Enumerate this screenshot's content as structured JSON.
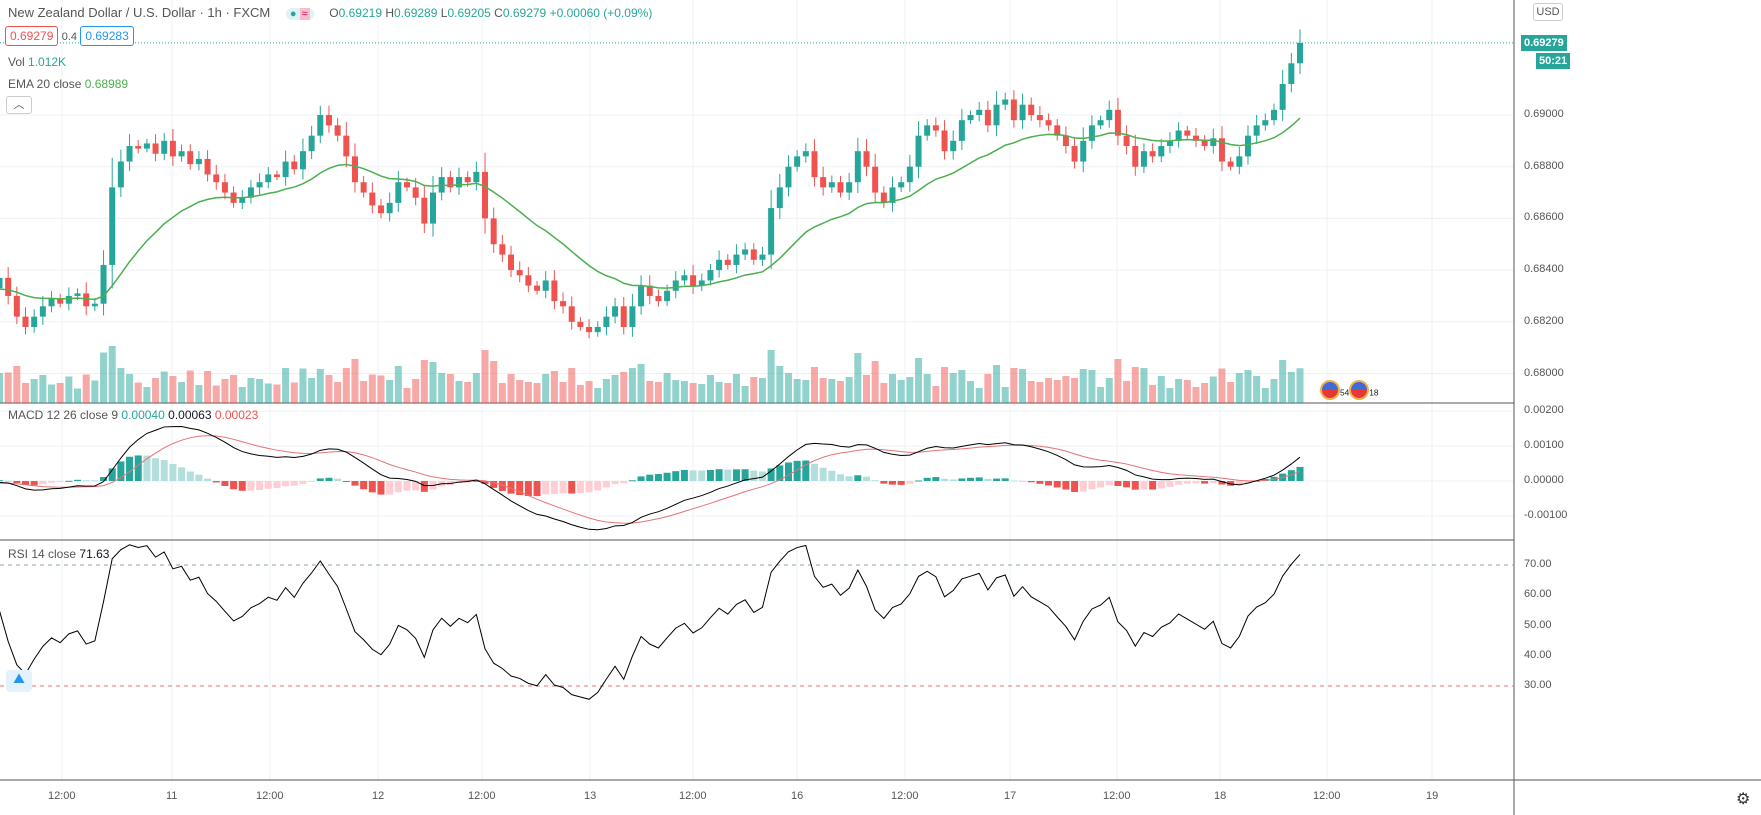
{
  "header": {
    "title": "New Zealand Dollar / U.S. Dollar · 1h · FXCM",
    "ohlc": {
      "o_label": "O",
      "o": "0.69219",
      "h_label": "H",
      "h": "0.69289",
      "l_label": "L",
      "l": "0.69205",
      "c_label": "C",
      "c": "0.69279",
      "change": "+0.00060 (+0.09%)"
    },
    "sell": "0.69279",
    "spread": "0.4",
    "buy": "0.69283"
  },
  "indicators": {
    "vol_label": "Vol",
    "vol_value": "1.012K",
    "ema_label": "EMA 20 close",
    "ema_value": "0.68989",
    "macd_label": "MACD 12 26 close 9",
    "macd_values": [
      "0.00040",
      "0.00063",
      "0.00023"
    ],
    "rsi_label": "RSI 14 close",
    "rsi_value": "71.63"
  },
  "price_axis": {
    "currency": "USD",
    "last_price": "0.69279",
    "countdown": "50:21",
    "ticks": [
      "0.69000",
      "0.68800",
      "0.68600",
      "0.68400",
      "0.68200",
      "0.68000"
    ]
  },
  "macd_axis": {
    "ticks": [
      "0.00200",
      "0.00100",
      "0.00000",
      "-0.00100"
    ]
  },
  "rsi_axis": {
    "ticks": [
      "70.00",
      "60.00",
      "50.00",
      "40.00",
      "30.00"
    ]
  },
  "events": {
    "e1": "5",
    "e2": "4",
    "e3": "18"
  },
  "colors": {
    "up": "#26a69a",
    "down": "#ef5350",
    "ema": "#4caf50"
  },
  "chart_data": {
    "type": "candlestick",
    "title": "New Zealand Dollar / U.S. Dollar 1h",
    "x_ticks": [
      "12:00",
      "11",
      "12:00",
      "12",
      "12:00",
      "13",
      "12:00",
      "16",
      "12:00",
      "17",
      "12:00",
      "18",
      "12:00",
      "19"
    ],
    "ylim": [
      0.6796,
      0.6945
    ],
    "close": [
      0.6834,
      0.6836,
      0.6828,
      0.6825,
      0.683,
      0.6832,
      0.6829,
      0.6833,
      0.6837,
      0.683,
      0.6822,
      0.6818,
      0.6822,
      0.6826,
      0.6829,
      0.6827,
      0.683,
      0.6831,
      0.6826,
      0.6827,
      0.6842,
      0.6872,
      0.6882,
      0.6888,
      0.6887,
      0.6889,
      0.6885,
      0.689,
      0.6884,
      0.6886,
      0.6881,
      0.6883,
      0.6877,
      0.6874,
      0.687,
      0.6866,
      0.6868,
      0.6872,
      0.6874,
      0.6877,
      0.6876,
      0.6882,
      0.6879,
      0.6886,
      0.6892,
      0.69,
      0.6896,
      0.6892,
      0.6884,
      0.6874,
      0.687,
      0.6865,
      0.6862,
      0.6866,
      0.6874,
      0.6872,
      0.6868,
      0.6858,
      0.687,
      0.6876,
      0.6872,
      0.6876,
      0.6874,
      0.6878,
      0.686,
      0.685,
      0.6846,
      0.684,
      0.6838,
      0.6834,
      0.6832,
      0.6836,
      0.6828,
      0.6826,
      0.682,
      0.6818,
      0.6816,
      0.6818,
      0.6822,
      0.6826,
      0.6818,
      0.6826,
      0.6834,
      0.683,
      0.6828,
      0.6832,
      0.6836,
      0.6838,
      0.6834,
      0.6836,
      0.684,
      0.6844,
      0.6842,
      0.6846,
      0.6848,
      0.6844,
      0.6846,
      0.6864,
      0.6872,
      0.688,
      0.6884,
      0.6886,
      0.6876,
      0.6872,
      0.6874,
      0.687,
      0.6874,
      0.6886,
      0.688,
      0.687,
      0.6866,
      0.6872,
      0.6874,
      0.688,
      0.6892,
      0.6896,
      0.6894,
      0.6886,
      0.689,
      0.6898,
      0.69,
      0.6902,
      0.6896,
      0.6904,
      0.6906,
      0.6898,
      0.6904,
      0.69,
      0.6898,
      0.6896,
      0.6892,
      0.6888,
      0.6882,
      0.689,
      0.6896,
      0.6898,
      0.6902,
      0.6892,
      0.6888,
      0.688,
      0.6886,
      0.6884,
      0.6888,
      0.689,
      0.6894,
      0.6892,
      0.689,
      0.6888,
      0.6891,
      0.6882,
      0.688,
      0.6884,
      0.6892,
      0.6896,
      0.6898,
      0.6902,
      0.6912,
      0.692,
      0.69279
    ]
  }
}
